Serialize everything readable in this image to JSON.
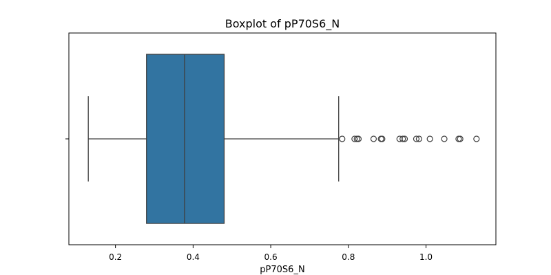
{
  "chart_data": {
    "type": "boxplot",
    "title": "Boxplot of pP70S6_N",
    "xlabel": "pP70S6_N",
    "ylabel": "",
    "orientation": "horizontal",
    "xlim": [
      0.08,
      1.18
    ],
    "xticks": [
      0.2,
      0.4,
      0.6,
      0.8,
      1.0
    ],
    "xtick_labels": [
      "0.2",
      "0.4",
      "0.6",
      "0.8",
      "1.0"
    ],
    "grid": false,
    "box": {
      "whisker_low": 0.13,
      "q1": 0.28,
      "median": 0.378,
      "q3": 0.48,
      "whisker_high": 0.775
    },
    "outliers": [
      0.784,
      0.816,
      0.822,
      0.826,
      0.865,
      0.884,
      0.887,
      0.932,
      0.94,
      0.945,
      0.975,
      0.982,
      1.01,
      1.047,
      1.084,
      1.088,
      1.13
    ],
    "colors": {
      "box_fill": "#3274a1",
      "lines": "#3f3f3f",
      "axes": "#000000"
    }
  }
}
